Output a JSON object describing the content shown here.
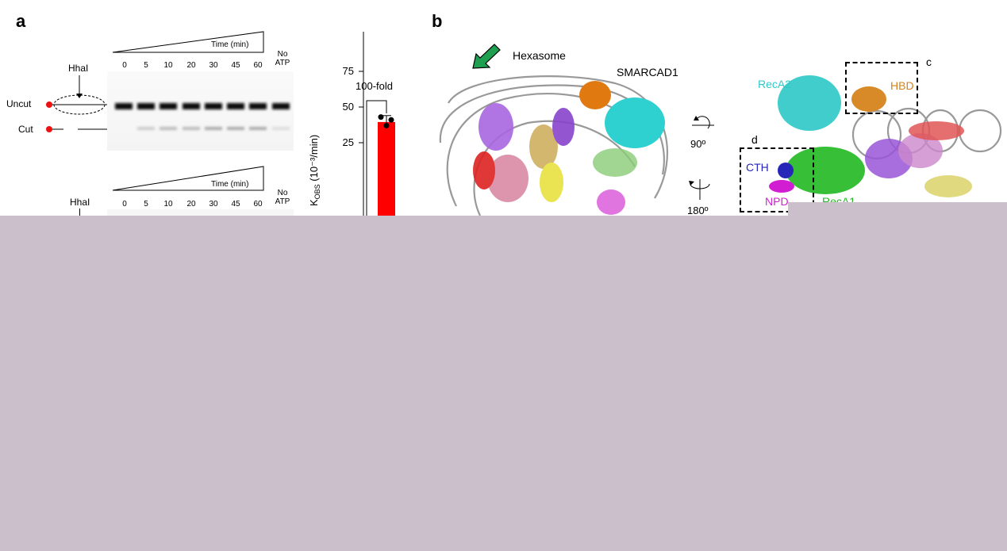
{
  "panel_a": {
    "letter": "a",
    "gel1": {
      "enzyme_label": "HhaI",
      "time_label": "Time (min)",
      "lanes": [
        "0",
        "5",
        "10",
        "20",
        "30",
        "45",
        "60"
      ],
      "no_atp": [
        "No",
        "ATP"
      ],
      "band_uncut": "Uncut",
      "band_cut": "Cut"
    },
    "gel2": {
      "enzyme_label": "HhaI",
      "time_label": "Time (min)",
      "lanes": [
        "0",
        "5",
        "10",
        "20",
        "30",
        "45",
        "60"
      ],
      "no_atp": [
        "No",
        "ATP"
      ]
    },
    "fold_label": "100-fold"
  },
  "panel_b": {
    "letter": "b",
    "hexasome_label": "Hexasome",
    "smarcad1_label": "SMARCAD1",
    "rotation_1": "90º",
    "rotation_2": "180º",
    "recA2": "RecA2",
    "hbd": "HBD",
    "box_c": "c",
    "box_d": "d",
    "cth": "CTH",
    "npd": "NPD",
    "recA1": "RecA1",
    "colors": {
      "recA2": "#2ec8c8",
      "hbd": "#d4821e",
      "cth": "#2626b8",
      "npd": "#d21ed2",
      "recA1": "#22b822",
      "arrow": "#1ea050",
      "bar": "#ff0000"
    }
  },
  "chart_data": {
    "type": "bar",
    "ylabel": "K",
    "ylabel_sub": "OBS",
    "ylabel_unit": " (10⁻³/min)",
    "yticks": [
      "75",
      "50",
      "25"
    ],
    "ylim": [
      0,
      75
    ],
    "values": [
      39.5
    ],
    "points": [
      43,
      41,
      37
    ],
    "error": 4.5
  }
}
